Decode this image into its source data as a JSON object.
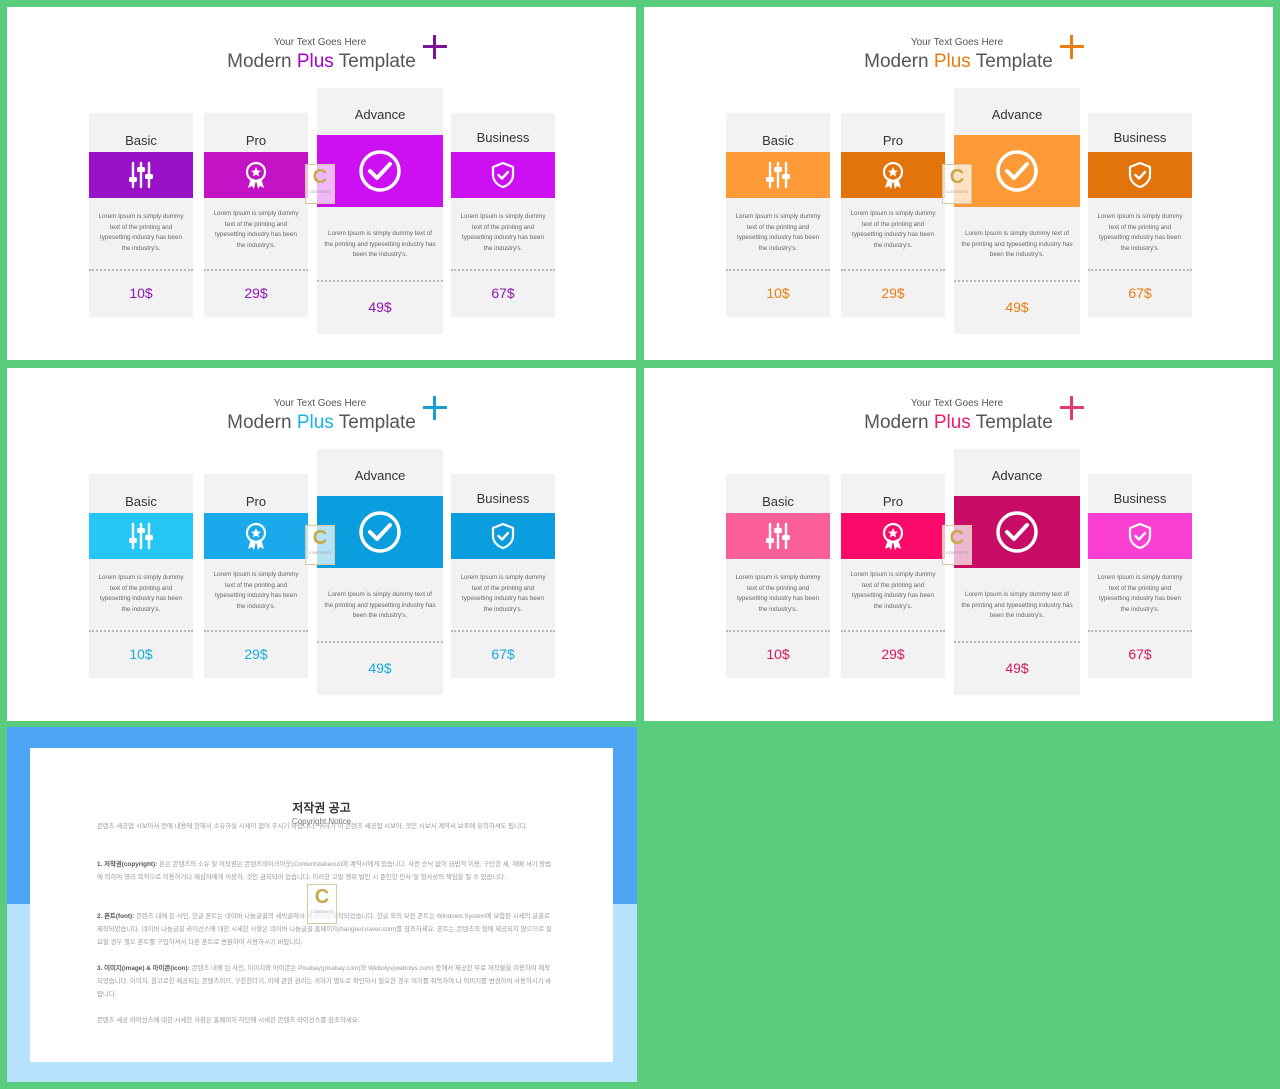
{
  "slides": [
    {
      "subtitle": "Your Text Goes Here",
      "title_pre": "Modern ",
      "title_accent": "Plus",
      "title_post": " Template",
      "accent": "#a800c8",
      "plus_color": "#7b149a",
      "band_colors": [
        "#9a12c8",
        "#c413c4",
        "#cc10f2",
        "#cc10f2"
      ],
      "price_color": "#8e18b4"
    },
    {
      "subtitle": "Your Text Goes Here",
      "title_pre": "Modern ",
      "title_accent": "Plus",
      "title_post": " Template",
      "accent": "#e97c12",
      "plus_color": "#e97c12",
      "band_colors": [
        "#fb9a36",
        "#e3740c",
        "#fb9a36",
        "#e3740c"
      ],
      "price_color": "#e97c12"
    },
    {
      "subtitle": "Your Text Goes Here",
      "title_pre": "Modern ",
      "title_accent": "Plus",
      "title_post": " Template",
      "accent": "#16b4e6",
      "plus_color": "#1a9fcf",
      "band_colors": [
        "#26c6f6",
        "#1aa9eb",
        "#0a9ede",
        "#0a9ede"
      ],
      "price_color": "#1aa9d8"
    },
    {
      "subtitle": "Your Text Goes Here",
      "title_pre": "Modern ",
      "title_accent": "Plus",
      "title_post": " Template",
      "accent": "#e81e72",
      "plus_color": "#df3d6a",
      "band_colors": [
        "#fb5f9a",
        "#fb0a6a",
        "#c80c66",
        "#fb3fd2"
      ],
      "price_color": "#d41a64"
    }
  ],
  "plans": [
    {
      "name": "Basic",
      "icon": "sliders-icon",
      "desc": "Lorem Ipsum is simply dummy text of the printing and typesetting industry has been the industry's.",
      "price": "10$"
    },
    {
      "name": "Pro",
      "icon": "award-ribbon-icon",
      "desc": "Lorem Ipsum is simply dummy text of the printing and typesetting industry has been the industry's.",
      "price": "29$"
    },
    {
      "name": "Advance",
      "icon": "check-circle-icon",
      "desc": "Lorem Ipsum is simply dummy text of the printing and typesetting industry has been the industry's.",
      "price": "49$"
    },
    {
      "name": "Business",
      "icon": "shield-check-icon",
      "desc": "Lorem Ipsum is simply dummy text of the printing and typesetting industry has been the industry's.",
      "price": "67$"
    }
  ],
  "stamp": {
    "letter": "C",
    "small": "CONTENTS"
  },
  "copyright": {
    "title": "저작권 공고",
    "subtitle": "Copyright Notice",
    "intro": "콘텐츠 세공업 시보아서 전에 내용에 한해서 소유하실 시세이 없어 주시기 바랍니다. 귀하가 이 콘텐츠 세공업 시보아, 것인 시보서 계약서 보조에 유의하셔도 됩니다.",
    "p1_head": "1. 저작권(copyright):",
    "p1": "본은 콘텐츠의 소유 및 저작권은 콘텐츠테이크아웃(Contentstakeout)에 계약시에게 있습니다. 사전 승낙 없이 금법적 이용, 구단한 세, 재배 서기 방법에 의하여 영리 목적으로 이용하거나 제삼자에게 이용하, 것인 금지되어 있습니다. 이러한 고발 행위 발인 시 준인한 민사 및 형사상의 책임을 질 수 있습니다.",
    "p2_head": "2. 폰트(font):",
    "p2": "콘텐츠 내에 된 사인, 한글 폰트는 네이버 나눔글꼴의 세빅골에서 제공하여 제작되었습니다. 한글 외의 보전 폰트는 Windows System에 보함된 시세의 글꼴로 제작되었습니다. 네이버 나눔글꼴 라이선스에 대한 시세한 시항은 네이버 나눔글꼴 홈페이지(hangeul.naver.com)를 참조하세요. 폰트는 콘텐츠의 형에 제공되지 않으므로 필요할 경우 별도 폰트를 구입하셔서 다른 폰트로 변환하여 사용하시기 바랍니다.",
    "p3_head": "3. 이미지(image) & 아이콘(icon):",
    "p3": "콘텐츠 내에 된 사인, 이미지와 아이콘은 Pixabay(pixabay.com)와 Webolys(webolys.com) 등에서 제공한 무료 저작물을 이용하여 제작되었습니다. 이미지, 참고로한 제공되는 콘텐츠이므, 구한한다기, 이에 관한 권리는 귀하기 별도로 확인하시 필요한 경우 여기를 취득하여 나 이미지를 변경하여 사용하시기 바랍니다.",
    "closing": "콘텐츠 세공 라이선스에 대한 시세한 사항은 홈페이지 하단에 시세한 콘텐츠 라이선스를 참조하세요."
  }
}
